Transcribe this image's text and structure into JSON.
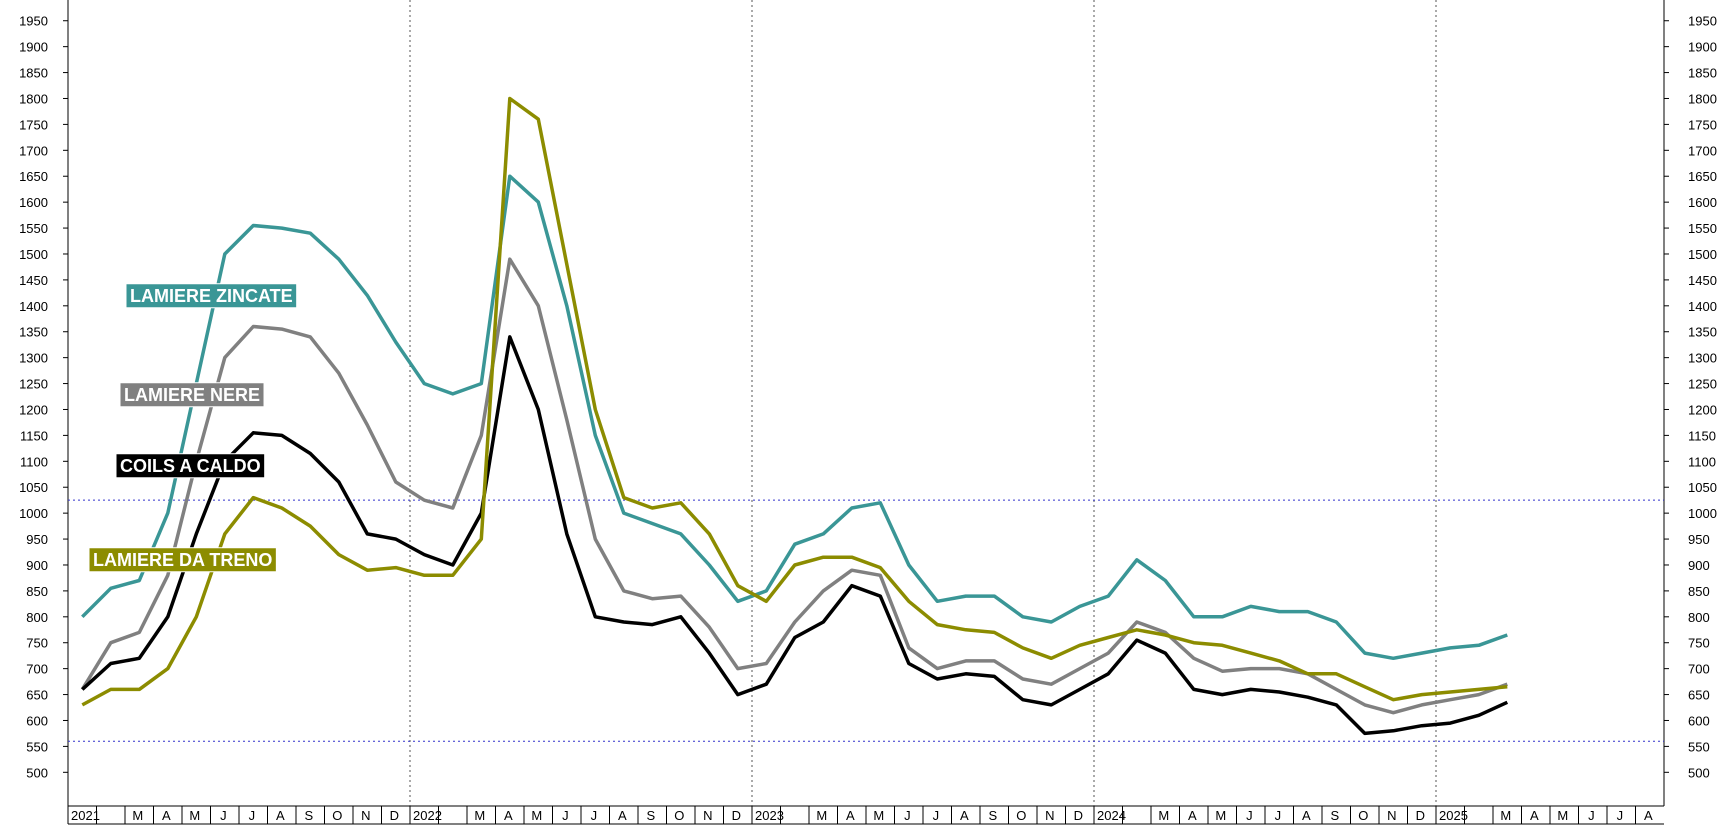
{
  "chart_data": {
    "type": "line",
    "categories": [
      "2021",
      null,
      "M",
      "A",
      "M",
      "J",
      "J",
      "A",
      "S",
      "O",
      "N",
      "D",
      "2022",
      null,
      "M",
      "A",
      "M",
      "J",
      "J",
      "A",
      "S",
      "O",
      "N",
      "D",
      "2023",
      null,
      "M",
      "A",
      "M",
      "J",
      "J",
      "A",
      "S",
      "O",
      "N",
      "D",
      "2024",
      null,
      "M",
      "A",
      "M",
      "J",
      "J",
      "A",
      "S",
      "O",
      "N",
      "D",
      "2025",
      null,
      "M",
      "A",
      "M",
      "J",
      "J",
      "A"
    ],
    "series": [
      {
        "name": "LAMIERE ZINCATE",
        "color": "#3a9696",
        "values": [
          800,
          855,
          870,
          1000,
          1250,
          1500,
          1555,
          1550,
          1540,
          1490,
          1420,
          1330,
          1250,
          1230,
          1250,
          1650,
          1600,
          1400,
          1150,
          1000,
          980,
          960,
          900,
          830,
          850,
          940,
          960,
          1010,
          1020,
          900,
          830,
          840,
          840,
          800,
          790,
          820,
          840,
          910,
          870,
          800,
          800,
          820,
          810,
          810,
          790,
          730,
          720,
          730,
          740,
          745,
          765,
          null,
          null,
          null,
          null,
          null
        ]
      },
      {
        "name": "LAMIERE NERE",
        "color": "#808080",
        "values": [
          660,
          750,
          770,
          880,
          1100,
          1300,
          1360,
          1355,
          1340,
          1270,
          1170,
          1060,
          1025,
          1010,
          1150,
          1490,
          1400,
          1180,
          950,
          850,
          835,
          840,
          780,
          700,
          710,
          790,
          850,
          890,
          880,
          740,
          700,
          715,
          715,
          680,
          670,
          700,
          730,
          790,
          770,
          720,
          695,
          700,
          700,
          690,
          660,
          630,
          615,
          630,
          640,
          650,
          670,
          null,
          null,
          null,
          null,
          null
        ]
      },
      {
        "name": "COILS A CALDO",
        "color": "#000000",
        "values": [
          660,
          710,
          720,
          800,
          960,
          1100,
          1155,
          1150,
          1115,
          1060,
          960,
          950,
          920,
          900,
          1000,
          1340,
          1200,
          960,
          800,
          790,
          785,
          800,
          730,
          650,
          670,
          760,
          790,
          860,
          840,
          710,
          680,
          690,
          685,
          640,
          630,
          660,
          690,
          755,
          730,
          660,
          650,
          660,
          655,
          645,
          630,
          575,
          580,
          590,
          595,
          610,
          635,
          null,
          null,
          null,
          null,
          null
        ]
      },
      {
        "name": "LAMIERE DA TRENO",
        "color": "#8c8c00",
        "values": [
          630,
          660,
          660,
          700,
          800,
          960,
          1030,
          1010,
          975,
          920,
          890,
          895,
          880,
          880,
          950,
          1800,
          1760,
          1480,
          1200,
          1030,
          1010,
          1020,
          960,
          860,
          830,
          900,
          915,
          915,
          895,
          830,
          785,
          775,
          770,
          740,
          720,
          745,
          760,
          775,
          765,
          750,
          745,
          730,
          715,
          690,
          690,
          665,
          640,
          650,
          655,
          660,
          665,
          null,
          null,
          null,
          null,
          null
        ]
      }
    ],
    "ylim": [
      435,
      1990
    ],
    "yticks": [
      500,
      550,
      600,
      650,
      700,
      750,
      800,
      850,
      900,
      950,
      1000,
      1050,
      1100,
      1150,
      1200,
      1250,
      1300,
      1350,
      1400,
      1450,
      1500,
      1550,
      1600,
      1650,
      1700,
      1750,
      1800,
      1850,
      1900,
      1950
    ],
    "reference_lines": [
      1025,
      560
    ],
    "reference_color": "#3333cc"
  }
}
